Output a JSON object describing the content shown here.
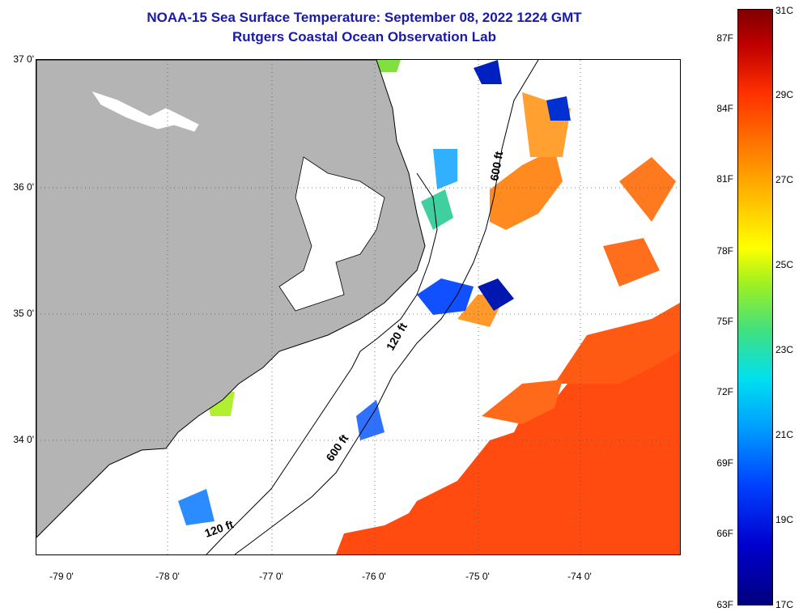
{
  "title": {
    "line1": "NOAA-15 Sea Surface Temperature:  September 08, 2022 1224 GMT",
    "line2": "Rutgers Coastal Ocean Observation Lab"
  },
  "map": {
    "latitude_labels": [
      "37 0'",
      "36 0'",
      "35 0'",
      "34 0'"
    ],
    "longitude_labels": [
      "-79 0'",
      "-78 0'",
      "-77 0'",
      "-76 0'",
      "-75 0'",
      "-74 0'"
    ],
    "isobath_labels": [
      "600 ft",
      "120 ft",
      "600 ft",
      "120 ft"
    ],
    "colors": {
      "land": "#b4b4b4",
      "cloud_mask": "#ffffff",
      "coastline": "#000000"
    }
  },
  "colorbar": {
    "fahrenheit": [
      "87F",
      "84F",
      "81F",
      "78F",
      "75F",
      "72F",
      "69F",
      "66F",
      "63F"
    ],
    "celsius": [
      "31C",
      "29C",
      "27C",
      "25C",
      "23C",
      "21C",
      "19C",
      "17C"
    ],
    "min_f": 63,
    "max_c": 31,
    "min_c": 17
  }
}
